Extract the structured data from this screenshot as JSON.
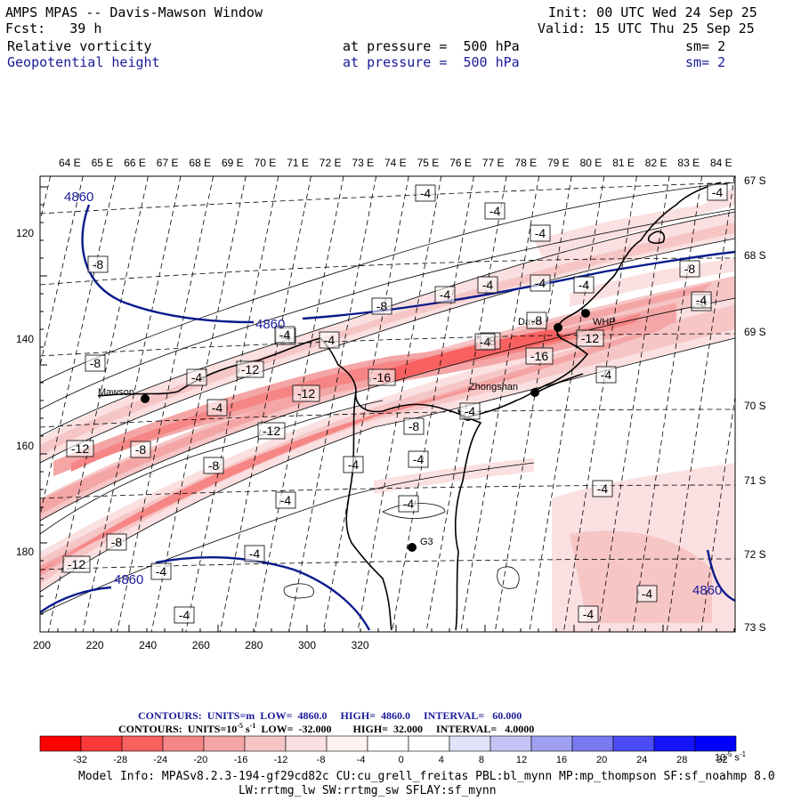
{
  "header": {
    "title": "AMPS MPAS -- Davis-Mawson Window",
    "fcst_label": "Fcst:",
    "fcst_value": "39 h",
    "init": "Init: 00 UTC Wed 24 Sep 25",
    "valid": "Valid: 15 UTC Thu 25 Sep 25",
    "field1_name": "Relative vorticity",
    "field1_level": "at pressure =  500 hPa",
    "field1_sm": "sm= 2",
    "field2_name": "Geopotential height",
    "field2_level": "at pressure =  500 hPa",
    "field2_sm": "sm= 2"
  },
  "map": {
    "lon_labels": [
      "64 E",
      "65 E",
      "66 E",
      "67 E",
      "68 E",
      "69 E",
      "70 E",
      "71 E",
      "72 E",
      "73 E",
      "74 E",
      "75 E",
      "76 E",
      "77 E",
      "78 E",
      "79 E",
      "80 E",
      "81 E",
      "82 E",
      "83 E",
      "84 E"
    ],
    "lat_labels": [
      "67 S",
      "68 S",
      "69 S",
      "70 S",
      "71 S",
      "72 S",
      "73 S"
    ],
    "y_ticks": [
      "120",
      "140",
      "160",
      "180"
    ],
    "x_ticks": [
      "200",
      "220",
      "240",
      "260",
      "280",
      "300",
      "320"
    ],
    "stations": [
      "Mawson",
      "Davis",
      "WHP",
      "Zhongshan",
      "G3"
    ],
    "height_labels": [
      "4860",
      "4860",
      "4860",
      "4860"
    ],
    "vort_labels": [
      "-4",
      "-4",
      "-4",
      "-4",
      "-8",
      "-8",
      "-4",
      "-4",
      "-4",
      "-8",
      "-4",
      "-8",
      "-8",
      "-4",
      "-4",
      "-12",
      "-8",
      "-16",
      "-16",
      "-8",
      "-12",
      "-4",
      "-4",
      "-12",
      "-4",
      "-4",
      "-12",
      "-8",
      "-8",
      "-12",
      "-8",
      "-4",
      "-4",
      "-4",
      "-8",
      "-4",
      "-12",
      "-4",
      "-4",
      "-4",
      "-4",
      "-4",
      "-4",
      "-4",
      "-4",
      "-4"
    ]
  },
  "legend": {
    "contours1": "CONTOURS:  UNITS=m  LOW=  4860.0     HIGH=  4860.0     INTERVAL=   60.000",
    "contours2_a": "CONTOURS:  UNITS=10",
    "contours2_exp": "-5",
    "contours2_b": " s",
    "contours2_exp2": "-1",
    "contours2_c": "  LOW=  -32.000        HIGH=  32.000     INTERVAL=   4.0000",
    "colors": [
      "#ff0000",
      "#fd3a3a",
      "#f96060",
      "#f68686",
      "#f4a6a6",
      "#f6c6c6",
      "#fae0e0",
      "#fff2f2",
      "#ffffff",
      "#ffffff",
      "#e2e2fa",
      "#c4c4f6",
      "#a0a0f2",
      "#7a7af0",
      "#4c4cf6",
      "#1414fc",
      "#0000ff"
    ],
    "ticks": [
      "-32",
      "-28",
      "-24",
      "-20",
      "-16",
      "-12",
      "-8",
      "-4",
      "0",
      "4",
      "8",
      "12",
      "16",
      "20",
      "24",
      "28",
      "32"
    ],
    "unit_base": "10",
    "unit_exp": "-5",
    "unit_s": " s",
    "unit_s_exp": "-1"
  },
  "model_info": {
    "line1": "Model Info: MPASv8.2.3-194-gf29cd82c CU:cu_grell_freitas PBL:bl_mynn MP:mp_thompson SF:sf_noahmp 8.0",
    "line2": "LW:rrtmg_lw SW:rrtmg_sw SFLAY:sf_mynn"
  },
  "colors": {
    "height_contour": "#0a1a8c",
    "text_blue": "#1a1a9a"
  }
}
